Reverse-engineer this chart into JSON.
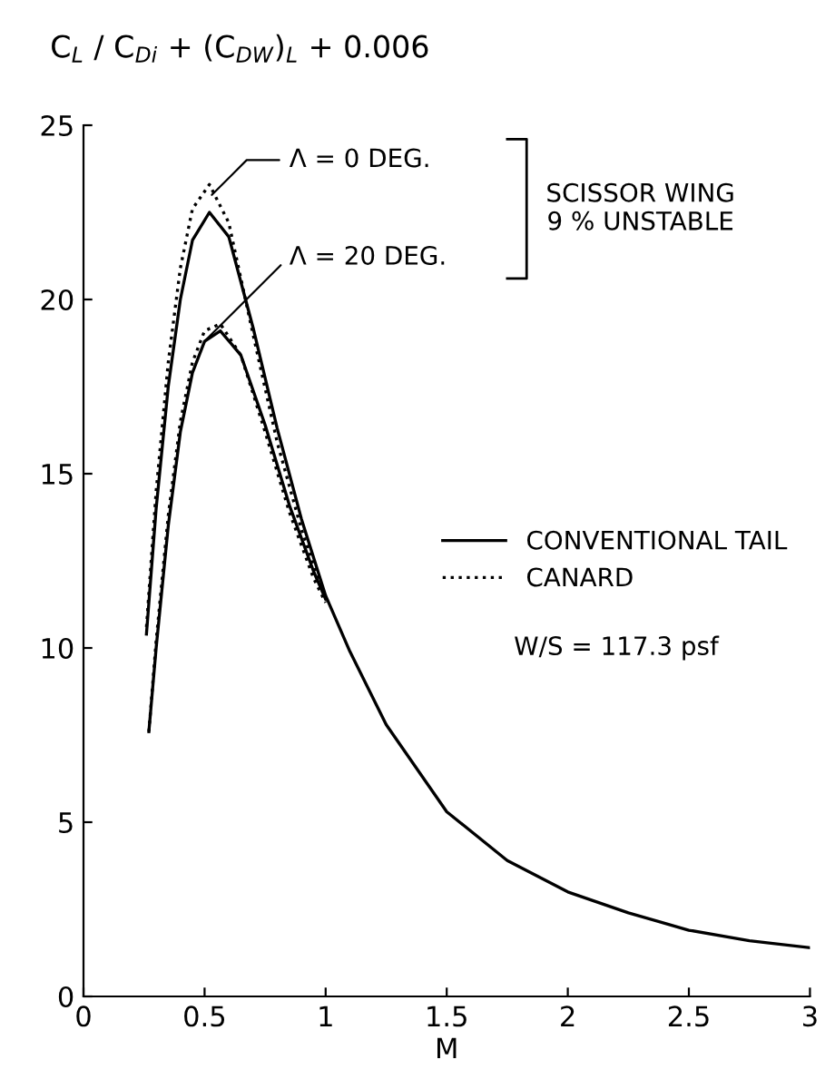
{
  "chart_data": {
    "type": "line",
    "ylabel": "C$_{L}$ / C$_{Di}$ + (C$_{DW}$)$_{L}$ + 0.006",
    "xlabel": "M",
    "xlim": [
      0,
      3
    ],
    "xticks": [
      0,
      0.5,
      1,
      1.5,
      2,
      2.5,
      3
    ],
    "ylim": [
      0,
      25
    ],
    "yticks": [
      0,
      5,
      10,
      15,
      20,
      25
    ],
    "grid": false,
    "legend": "right",
    "marker": "none",
    "series": [
      {
        "name": "CONVENTIONAL TAIL",
        "color": "#000000",
        "line_style": "solid",
        "x": [
          0.26,
          0.3,
          0.35,
          0.4,
          0.45,
          0.52,
          0.6,
          0.7,
          0.8,
          0.9,
          1.0,
          1.1,
          1.25,
          1.5,
          1.75,
          2,
          2.25,
          2.5,
          2.75,
          3
        ],
        "values": [
          10.4,
          14,
          17.5,
          20,
          21.7,
          22.5,
          21.8,
          19.2,
          16.3,
          13.7,
          11.5,
          9.9,
          7.8,
          5.3,
          3.9,
          3.0,
          2.4,
          1.9,
          1.6,
          1.4
        ]
      },
      {
        "name": "CANARD",
        "color": "#000000",
        "line_style": "dotted",
        "x": [
          0.26,
          0.3,
          0.35,
          0.4,
          0.45,
          0.52,
          0.6,
          0.7,
          0.8,
          0.9,
          1.0
        ],
        "values": [
          10.6,
          14.5,
          18.2,
          20.9,
          22.6,
          23.3,
          22.2,
          19.0,
          15.9,
          13.4,
          11.4
        ]
      },
      {
        "color": "#000000",
        "line_style": "solid",
        "x": [
          0.27,
          0.3,
          0.35,
          0.4,
          0.45,
          0.5,
          0.565,
          0.65,
          0.75,
          0.85,
          0.95,
          1.0
        ],
        "values": [
          7.6,
          10,
          13.5,
          16.2,
          17.9,
          18.8,
          19.1,
          18.4,
          16.4,
          14.1,
          12.2,
          11.4
        ]
      },
      {
        "color": "#000000",
        "line_style": "dotted",
        "x": [
          0.27,
          0.3,
          0.35,
          0.4,
          0.45,
          0.5,
          0.565,
          0.65,
          0.75,
          0.85,
          0.95,
          1.0
        ],
        "values": [
          7.6,
          10.2,
          13.8,
          16.5,
          18.2,
          19.1,
          19.3,
          18.4,
          16.2,
          13.9,
          12.0,
          11.3
        ]
      }
    ],
    "annotations": [
      {
        "text": "Λ = 0 DEG.",
        "x": 0.53,
        "y": 23.0
      },
      {
        "text": "Λ = 20 DEG.",
        "x": 0.5,
        "y": 18.8
      },
      "SCISSOR WING\n9 % UNSTABLE",
      "W/S = 117.3 psf"
    ]
  }
}
